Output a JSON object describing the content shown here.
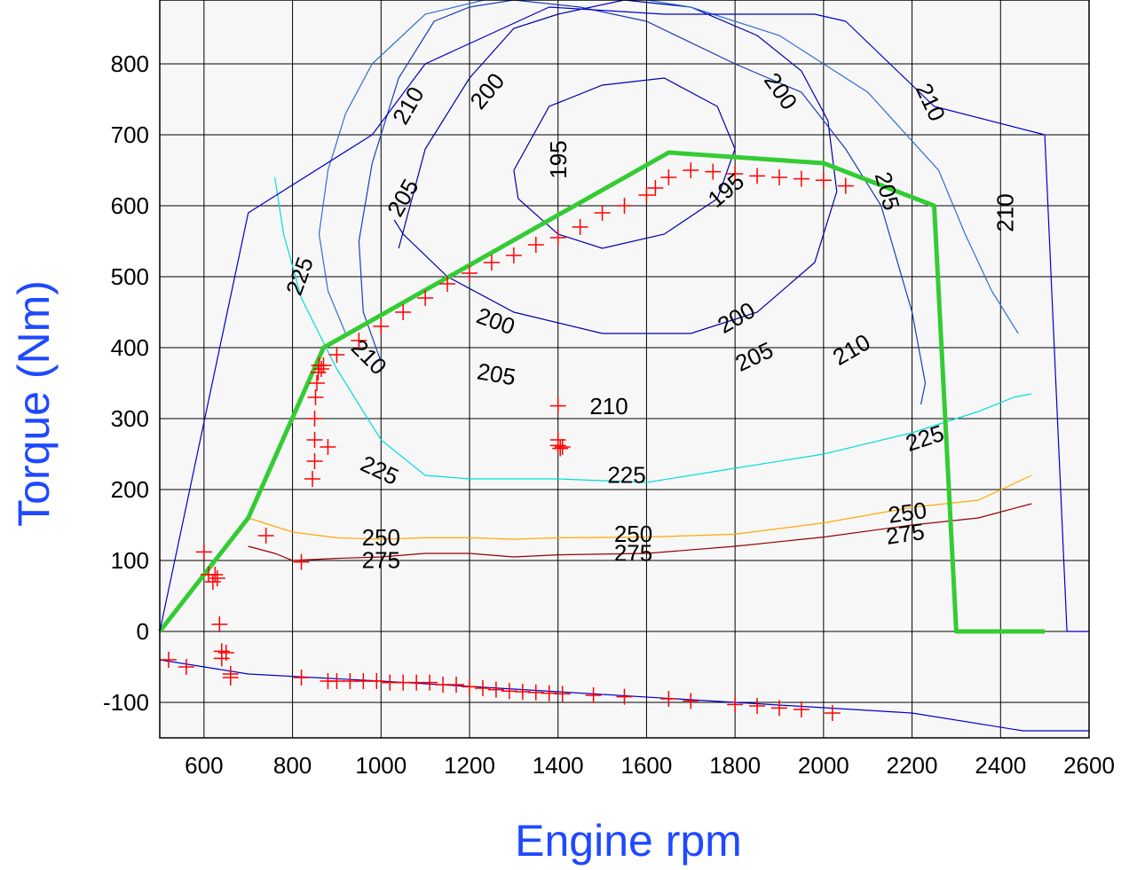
{
  "chart_data": {
    "type": "line",
    "title": "",
    "xlabel": "Engine rpm",
    "ylabel": "Torque (Nm)",
    "xlim": [
      500,
      2600
    ],
    "ylim": [
      -150,
      890
    ],
    "grid": true,
    "xticks": [
      600,
      800,
      1000,
      1200,
      1400,
      1600,
      1800,
      2000,
      2200,
      2400,
      2600
    ],
    "yticks": [
      -100,
      0,
      100,
      200,
      300,
      400,
      500,
      600,
      700,
      800
    ],
    "colors": {
      "torque_curve": "#33cc33",
      "boundary": "#0000cc",
      "c195": "#0000aa",
      "c200": "#0000aa",
      "c205": "#1a3fb5",
      "c210": "#2f6fd0",
      "c225": "#00dddd",
      "c250": "#ffaa00",
      "c275": "#990000",
      "points": "#ff0000",
      "plot_bg": "#f7f7f7"
    },
    "series": [
      {
        "name": "",
        "role": "full-load torque curve",
        "x": [
          500,
          700,
          870,
          1650,
          2000,
          2250,
          2300,
          2500
        ],
        "y": [
          0,
          160,
          400,
          675,
          660,
          600,
          0,
          0
        ]
      },
      {
        "name": "",
        "role": "map boundary",
        "x": [
          500,
          700,
          980,
          1100,
          1380,
          1640,
          1980,
          2050,
          2250,
          2500,
          2550,
          2600
        ],
        "y": [
          0,
          590,
          700,
          800,
          880,
          870,
          870,
          860,
          740,
          700,
          0,
          0
        ]
      },
      {
        "name": "",
        "role": "motoring line",
        "x": [
          500,
          700,
          1000,
          1400,
          1800,
          2200,
          2450,
          2600
        ],
        "y": [
          -40,
          -60,
          -70,
          -85,
          -100,
          -115,
          -140,
          -140
        ]
      }
    ],
    "contours": [
      {
        "level": "195",
        "x": [
          1300,
          1380,
          1500,
          1640,
          1760,
          1800,
          1760,
          1640,
          1500,
          1400,
          1310,
          1300
        ],
        "y": [
          650,
          740,
          770,
          780,
          740,
          680,
          610,
          560,
          540,
          560,
          610,
          650
        ]
      },
      {
        "level": "200",
        "x": [
          1040,
          1100,
          1200,
          1300,
          1400,
          1550,
          1700,
          1850,
          1950,
          2010,
          2030,
          1980,
          1850,
          1700,
          1500,
          1300,
          1150,
          1050,
          1030
        ],
        "y": [
          540,
          680,
          780,
          850,
          870,
          890,
          880,
          840,
          790,
          720,
          620,
          520,
          450,
          420,
          420,
          450,
          500,
          560,
          580
        ]
      },
      {
        "level": "205",
        "x": [
          1000,
          960,
          950,
          980,
          1040,
          1120,
          1200,
          1300,
          1450,
          1600,
          1800,
          1950,
          2050,
          2130,
          2200,
          2230,
          2220
        ],
        "y": [
          380,
          450,
          550,
          660,
          780,
          860,
          880,
          890,
          880,
          860,
          800,
          760,
          680,
          600,
          450,
          350,
          320
        ]
      },
      {
        "level": "210",
        "x": [
          920,
          880,
          860,
          880,
          920,
          980,
          1100,
          1300,
          1500,
          1700,
          1900,
          2100,
          2260,
          2320,
          2380,
          2440
        ],
        "y": [
          420,
          480,
          560,
          650,
          730,
          800,
          870,
          900,
          900,
          880,
          840,
          760,
          650,
          560,
          480,
          420
        ]
      },
      {
        "level": "225",
        "x": [
          760,
          780,
          820,
          900,
          1000,
          1100,
          1200,
          1300,
          1400,
          1600,
          1800,
          2000,
          2200,
          2350,
          2430,
          2470
        ],
        "y": [
          640,
          560,
          470,
          370,
          270,
          220,
          215,
          215,
          215,
          210,
          230,
          250,
          280,
          310,
          330,
          335
        ]
      },
      {
        "level": "250",
        "x": [
          700,
          800,
          900,
          1000,
          1100,
          1200,
          1300,
          1400,
          1600,
          1800,
          2000,
          2200,
          2350,
          2470
        ],
        "y": [
          160,
          140,
          132,
          130,
          132,
          132,
          130,
          132,
          133,
          137,
          153,
          175,
          185,
          220
        ]
      },
      {
        "level": "275",
        "x": [
          700,
          760,
          800,
          900,
          1000,
          1100,
          1200,
          1300,
          1400,
          1600,
          1800,
          2000,
          2200,
          2350,
          2470
        ],
        "y": [
          120,
          110,
          100,
          103,
          105,
          110,
          110,
          105,
          108,
          110,
          120,
          133,
          150,
          160,
          180
        ]
      }
    ],
    "contour_labels": [
      {
        "text": "195",
        "x": 1405,
        "y": 665,
        "rot": -90
      },
      {
        "text": "195",
        "x": 1782,
        "y": 620,
        "rot": -40
      },
      {
        "text": "200",
        "x": 1243,
        "y": 760,
        "rot": -50
      },
      {
        "text": "200",
        "x": 1900,
        "y": 760,
        "rot": 55
      },
      {
        "text": "200",
        "x": 1258,
        "y": 435,
        "rot": 20
      },
      {
        "text": "200",
        "x": 1805,
        "y": 440,
        "rot": -30
      },
      {
        "text": "205",
        "x": 1053,
        "y": 610,
        "rot": -60
      },
      {
        "text": "205",
        "x": 2140,
        "y": 620,
        "rot": 75
      },
      {
        "text": "205",
        "x": 1260,
        "y": 360,
        "rot": 10
      },
      {
        "text": "205",
        "x": 1845,
        "y": 385,
        "rot": -25
      },
      {
        "text": "210",
        "x": 1065,
        "y": 740,
        "rot": -60
      },
      {
        "text": "210",
        "x": 2238,
        "y": 745,
        "rot": 65
      },
      {
        "text": "210",
        "x": 2415,
        "y": 590,
        "rot": -90
      },
      {
        "text": "210",
        "x": 970,
        "y": 385,
        "rot": 45
      },
      {
        "text": "210",
        "x": 1515,
        "y": 315,
        "rot": 0
      },
      {
        "text": "210",
        "x": 2065,
        "y": 395,
        "rot": -30
      },
      {
        "text": "225",
        "x": 820,
        "y": 500,
        "rot": -70
      },
      {
        "text": "225",
        "x": 995,
        "y": 225,
        "rot": 25
      },
      {
        "text": "225",
        "x": 1555,
        "y": 218,
        "rot": 0
      },
      {
        "text": "225",
        "x": 2230,
        "y": 270,
        "rot": -18
      },
      {
        "text": "250",
        "x": 1000,
        "y": 130,
        "rot": 0
      },
      {
        "text": "250",
        "x": 1570,
        "y": 135,
        "rot": 0
      },
      {
        "text": "250",
        "x": 2190,
        "y": 165,
        "rot": -8
      },
      {
        "text": "275",
        "x": 1000,
        "y": 98,
        "rot": 0
      },
      {
        "text": "275",
        "x": 1570,
        "y": 108,
        "rot": 0
      },
      {
        "text": "275",
        "x": 2185,
        "y": 135,
        "rot": -8
      }
    ],
    "operating_points": {
      "marker": "+",
      "x": [
        600,
        610,
        620,
        625,
        630,
        635,
        650,
        660,
        740,
        820,
        845,
        850,
        850,
        850,
        852,
        855,
        858,
        860,
        865,
        870,
        880,
        900,
        950,
        1000,
        1050,
        1100,
        1150,
        1200,
        1250,
        1300,
        1350,
        1400,
        1450,
        1500,
        1550,
        1600,
        1620,
        1650,
        1700,
        1750,
        1800,
        1850,
        1900,
        1950,
        2000,
        2050,
        1400,
        1400,
        1400,
        1405,
        1410,
        520,
        560,
        640,
        640,
        660,
        820,
        880,
        900,
        930,
        960,
        990,
        1020,
        1050,
        1080,
        1110,
        1140,
        1170,
        1200,
        1230,
        1260,
        1290,
        1320,
        1350,
        1380,
        1410,
        1480,
        1550,
        1650,
        1700,
        1800,
        1850,
        1900,
        1950,
        2020
      ],
      "y": [
        112,
        80,
        70,
        80,
        75,
        10,
        -30,
        -60,
        135,
        98,
        215,
        240,
        270,
        300,
        330,
        350,
        365,
        375,
        370,
        375,
        260,
        390,
        410,
        430,
        450,
        470,
        490,
        505,
        520,
        530,
        545,
        555,
        570,
        590,
        600,
        615,
        625,
        640,
        650,
        648,
        645,
        642,
        640,
        638,
        636,
        628,
        318,
        270,
        262,
        258,
        260,
        -40,
        -50,
        -28,
        -38,
        -65,
        -65,
        -70,
        -70,
        -70,
        -70,
        -70,
        -72,
        -72,
        -72,
        -72,
        -75,
        -75,
        -78,
        -80,
        -82,
        -84,
        -85,
        -86,
        -87,
        -88,
        -90,
        -92,
        -95,
        -98,
        -103,
        -105,
        -108,
        -110,
        -115
      ]
    }
  }
}
